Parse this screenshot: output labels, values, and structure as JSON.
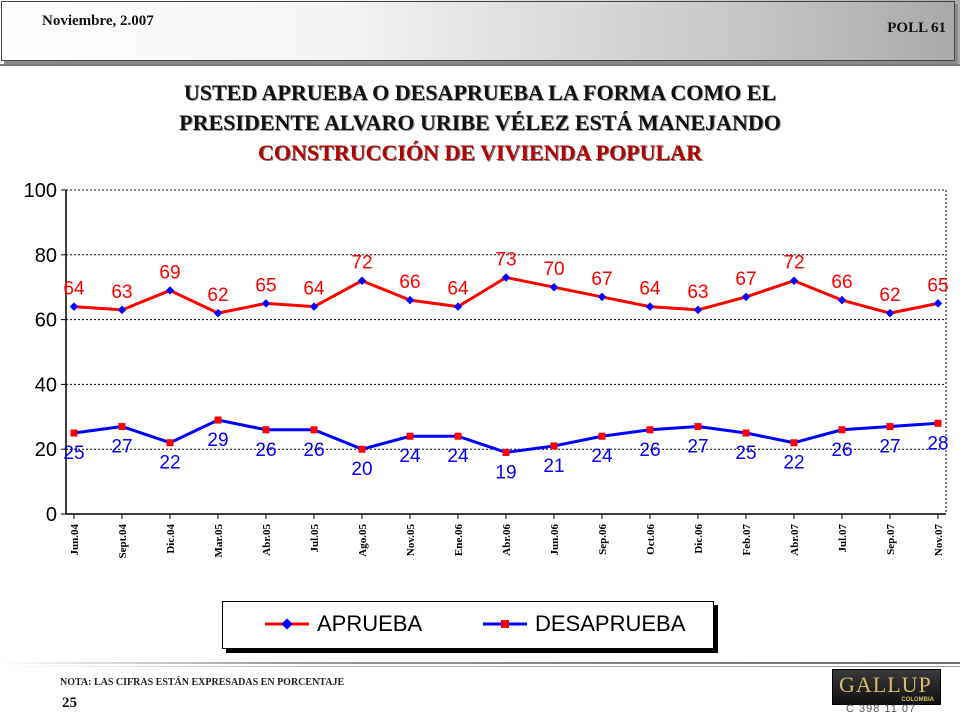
{
  "header": {
    "date": "Noviembre, 2.007",
    "poll": "POLL 61"
  },
  "title": {
    "line1": "USTED APRUEBA O DESAPRUEBA LA FORMA COMO EL",
    "line2": "PRESIDENTE ALVARO URIBE VÉLEZ ESTÁ MANEJANDO",
    "line3": "CONSTRUCCIÓN DE VIVIENDA POPULAR"
  },
  "colors": {
    "aprueba": "#ff0000",
    "desaprueba": "#0000ff",
    "marker_aprueba": "#0000ff",
    "marker_desaprueba": "#ff0000"
  },
  "chart_data": {
    "type": "line",
    "title": "USTED APRUEBA O DESAPRUEBA LA FORMA COMO EL PRESIDENTE ALVARO URIBE VÉLEZ ESTÁ MANEJANDO CONSTRUCCIÓN DE VIVIENDA POPULAR",
    "categories": [
      "Jun.04",
      "Sept.04",
      "Dic.04",
      "Mar.05",
      "Abr.05",
      "Jul.05",
      "Ago.05",
      "Nov.05",
      "Ene.06",
      "Abr.06",
      "Jun.06",
      "Sep.06",
      "Oct.06",
      "Dic.06",
      "Feb.07",
      "Abr.07",
      "Jul.07",
      "Sep.07",
      "Nov.07"
    ],
    "series": [
      {
        "name": "APRUEBA",
        "values": [
          64,
          63,
          69,
          62,
          65,
          64,
          72,
          66,
          64,
          73,
          70,
          67,
          64,
          63,
          67,
          72,
          66,
          62,
          65
        ]
      },
      {
        "name": "DESAPRUEBA",
        "values": [
          25,
          27,
          22,
          29,
          26,
          26,
          20,
          24,
          24,
          19,
          21,
          24,
          26,
          27,
          25,
          22,
          26,
          27,
          28
        ]
      }
    ],
    "ylim": [
      0,
      100
    ],
    "yticks": [
      0,
      20,
      40,
      60,
      80,
      100
    ],
    "xlabel": "",
    "ylabel": "",
    "grid": true,
    "legend": "bottom"
  },
  "legend": {
    "aprueba": "APRUEBA",
    "desaprueba": "DESAPRUEBA"
  },
  "footer": {
    "note": "NOTA: LAS CIFRAS ESTÁN EXPRESADAS EN PORCENTAJE",
    "page": "25",
    "logo": "GALLUP",
    "logo_country": "COLOMBIA",
    "code": "C 398 11 07"
  }
}
